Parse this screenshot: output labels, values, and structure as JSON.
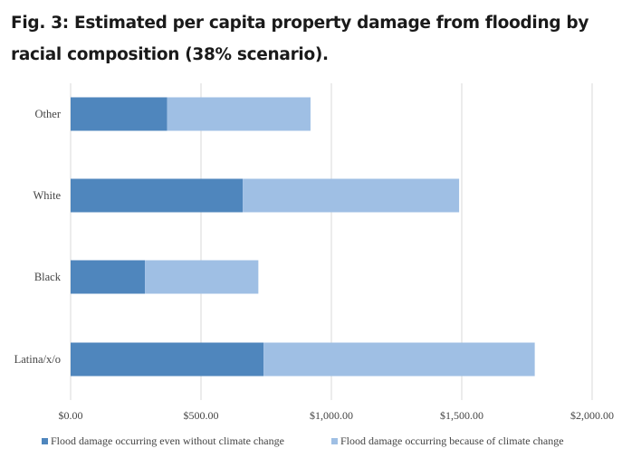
{
  "chart_data": {
    "type": "bar",
    "orientation": "horizontal",
    "stacked": true,
    "title": "Fig. 3: Estimated per capita property damage from flooding by racial composition (38% scenario).",
    "categories": [
      "Other",
      "White",
      "Black",
      "Latina/x/o"
    ],
    "series": [
      {
        "name": "Flood damage occurring even without climate change",
        "values": [
          370,
          660,
          285,
          740
        ],
        "color": "#4f86bd"
      },
      {
        "name": "Flood damage occurring because of climate change",
        "values": [
          550,
          830,
          435,
          1040
        ],
        "color": "#9fbfe4"
      }
    ],
    "xlim": [
      0,
      2000
    ],
    "x_ticks": [
      "$0.00",
      "$500.00",
      "$1,000.00",
      "$1,500.00",
      "$2,000.00"
    ],
    "x_tick_values": [
      0,
      500,
      1000,
      1500,
      2000
    ],
    "grid": "vertical",
    "legend_position": "bottom"
  }
}
